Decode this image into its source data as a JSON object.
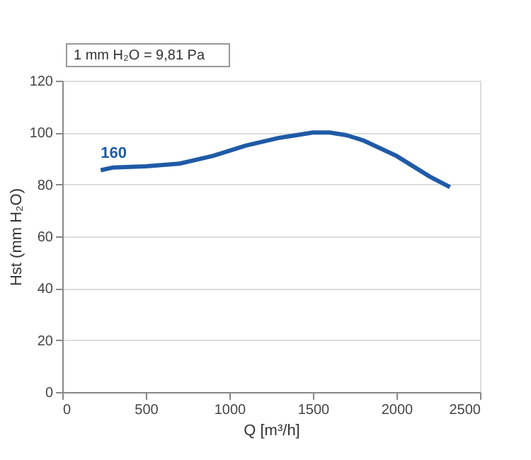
{
  "chart_data": {
    "type": "line",
    "xlabel": "Q [m³/h]",
    "ylabel": "Hst (mm H₂O)",
    "x": [
      230,
      300,
      500,
      700,
      900,
      1100,
      1300,
      1500,
      1600,
      1700,
      1800,
      2000,
      2200,
      2320
    ],
    "series": [
      {
        "name": "160",
        "color": "#1f5aa6",
        "values": [
          85.5,
          86.5,
          87,
          88,
          91,
          95,
          98,
          100,
          100,
          99,
          97,
          91,
          83,
          79
        ]
      }
    ],
    "xlim": [
      0,
      2500
    ],
    "xticks": [
      0,
      500,
      1000,
      1500,
      2000,
      2500
    ],
    "ylim": [
      0,
      120
    ],
    "yticks": [
      0,
      20,
      40,
      60,
      80,
      100,
      120
    ],
    "grid": "y",
    "marker": "none",
    "line_style": "solid",
    "annotations": [
      "1 mm H₂O = 9,81 Pa"
    ]
  }
}
